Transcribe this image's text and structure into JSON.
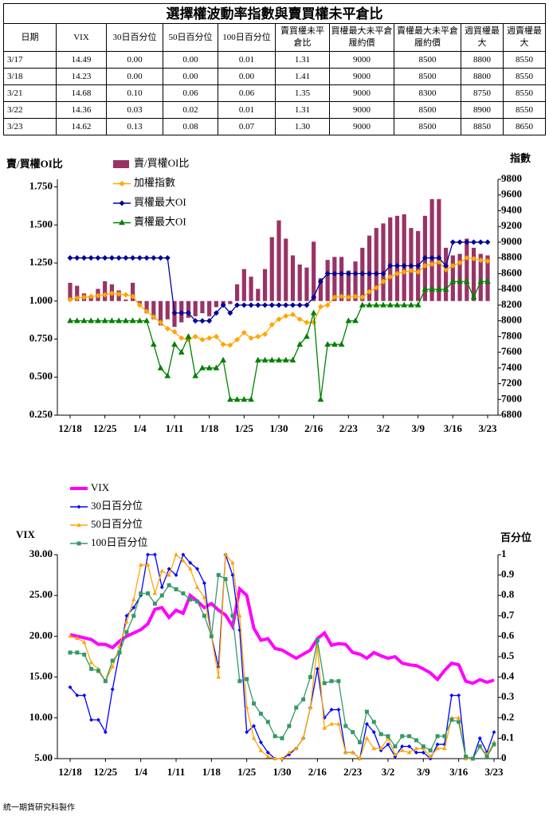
{
  "title": "選擇權波動率指數與賣買權未平倉比",
  "table": {
    "header": [
      "日期",
      "VIX",
      "30日百分位",
      "50日百分位",
      "100日百分位",
      "賣買權未平倉比",
      "買權最大未平倉履約價",
      "賣權最大未平倉履約價",
      "週買權最大",
      "週賣權最大"
    ],
    "rows": [
      [
        "3/17",
        "14.49",
        "0.00",
        "0.00",
        "0.01",
        "1.31",
        "9000",
        "8500",
        "8800",
        "8550"
      ],
      [
        "3/18",
        "14.23",
        "0.00",
        "0.00",
        "0.00",
        "1.41",
        "9000",
        "8500",
        "8800",
        "8550"
      ],
      [
        "3/21",
        "14.68",
        "0.10",
        "0.06",
        "0.06",
        "1.35",
        "9000",
        "8300",
        "8750",
        "8550"
      ],
      [
        "3/22",
        "14.36",
        "0.03",
        "0.02",
        "0.01",
        "1.31",
        "9000",
        "8500",
        "8900",
        "8550"
      ],
      [
        "3/23",
        "14.62",
        "0.13",
        "0.08",
        "0.07",
        "1.30",
        "9000",
        "8500",
        "8850",
        "8650"
      ]
    ]
  },
  "chart_data": [
    {
      "type": "combo",
      "y_label": "賣/買權OI比",
      "y2_label": "指數",
      "legend": "top",
      "bar_base": 1,
      "categories": [
        "12/18",
        null,
        null,
        null,
        null,
        "12/25",
        null,
        null,
        null,
        null,
        "1/4",
        null,
        null,
        null,
        null,
        "1/11",
        null,
        null,
        null,
        null,
        "1/18",
        null,
        null,
        null,
        null,
        "1/25",
        null,
        null,
        null,
        null,
        "1/30",
        null,
        null,
        null,
        null,
        "2/16",
        null,
        null,
        null,
        null,
        "2/23",
        null,
        null,
        null,
        null,
        "3/2",
        null,
        null,
        null,
        null,
        "3/9",
        null,
        null,
        null,
        null,
        "3/16",
        null,
        null,
        null,
        null,
        "3/23"
      ],
      "ylim": [
        0.25,
        1.8
      ],
      "yticks": [
        {
          "value": 0.25,
          "label": "0.250"
        },
        {
          "value": 0.5,
          "label": "0.500"
        },
        {
          "value": 0.75,
          "label": "0.750"
        },
        {
          "value": 1,
          "label": "1.000"
        },
        {
          "value": 1.25,
          "label": "1.250"
        },
        {
          "value": 1.5,
          "label": "1.500"
        },
        {
          "value": 1.75,
          "label": "1.750"
        }
      ],
      "y2lim": [
        6800,
        9800
      ],
      "y2ticks": [
        6800,
        7000,
        7200,
        7400,
        7600,
        7800,
        8000,
        8200,
        8400,
        8600,
        8800,
        9000,
        9200,
        9400,
        9600,
        9800
      ],
      "series": [
        {
          "name": "賣/買權OI比",
          "type": "bar",
          "color": "#993366",
          "axis": "y",
          "values": [
            1.12,
            1.1,
            1.05,
            1.03,
            1.08,
            1.13,
            1.11,
            1.07,
            1.01,
            1.12,
            0.98,
            0.92,
            0.88,
            0.84,
            0.88,
            0.83,
            0.86,
            0.89,
            0.9,
            0.92,
            0.9,
            0.96,
            0.97,
            0.98,
            1.11,
            1.21,
            1.16,
            1.08,
            1.21,
            1.42,
            1.53,
            1.41,
            1.3,
            1.24,
            1.22,
            1.39,
            1.15,
            1.27,
            1.29,
            1.29,
            1.2,
            1.26,
            1.35,
            1.43,
            1.48,
            1.51,
            1.55,
            1.56,
            1.57,
            1.48,
            1.46,
            1.56,
            1.67,
            1.67,
            1.35,
            1.3,
            1.31,
            1.41,
            1.35,
            1.31,
            1.3
          ]
        },
        {
          "name": "加權指數",
          "type": "line",
          "marker": "diamond",
          "color": "#ffa500",
          "axis": "y2",
          "values": [
            8270,
            8290,
            8300,
            8310,
            8320,
            8330,
            8350,
            8340,
            8330,
            8310,
            8200,
            8120,
            8050,
            7980,
            7900,
            7860,
            7780,
            7760,
            7800,
            7760,
            7780,
            7800,
            7700,
            7690,
            7760,
            7850,
            7780,
            7800,
            7830,
            7950,
            8020,
            8060,
            8080,
            8020,
            7980,
            7980,
            8180,
            8200,
            8300,
            8310,
            8300,
            8310,
            8300,
            8370,
            8420,
            8500,
            8560,
            8600,
            8620,
            8640,
            8620,
            8700,
            8720,
            8750,
            8650,
            8700,
            8740,
            8800,
            8790,
            8770,
            8760
          ]
        },
        {
          "name": "買權最大OI",
          "type": "line",
          "marker": "diamond",
          "color": "#000099",
          "axis": "y2",
          "values": [
            8800,
            8800,
            8800,
            8800,
            8800,
            8800,
            8800,
            8800,
            8800,
            8800,
            8800,
            8800,
            8800,
            8800,
            8800,
            8100,
            8100,
            8100,
            8000,
            8000,
            8000,
            8100,
            8200,
            8100,
            8200,
            8200,
            8200,
            8200,
            8200,
            8200,
            8200,
            8200,
            8200,
            8200,
            8200,
            8300,
            8500,
            8600,
            8600,
            8600,
            8600,
            8600,
            8600,
            8600,
            8600,
            8600,
            8700,
            8700,
            8700,
            8700,
            8700,
            8800,
            8800,
            8800,
            8700,
            9000,
            9000,
            9000,
            9000,
            9000,
            9000
          ]
        },
        {
          "name": "賣權最大OI",
          "type": "line",
          "marker": "triangle",
          "color": "#008000",
          "axis": "y2",
          "values": [
            8000,
            8000,
            8000,
            8000,
            8000,
            8000,
            8000,
            8000,
            8000,
            8000,
            8000,
            8000,
            7700,
            7400,
            7300,
            7700,
            7600,
            7800,
            7300,
            7400,
            7400,
            7400,
            7500,
            7000,
            7000,
            7000,
            7000,
            7500,
            7500,
            7500,
            7500,
            7500,
            7500,
            7700,
            7800,
            8100,
            7000,
            7700,
            7700,
            7700,
            8000,
            8000,
            8200,
            8200,
            8200,
            8200,
            8200,
            8200,
            8200,
            8200,
            8200,
            8400,
            8400,
            8400,
            8400,
            8500,
            8500,
            8500,
            8300,
            8500,
            8500
          ]
        }
      ]
    },
    {
      "type": "combo",
      "y_label": "VIX",
      "y2_label": "百分位",
      "legend": "top",
      "categories": [
        "12/18",
        null,
        null,
        null,
        null,
        "12/25",
        null,
        null,
        null,
        null,
        "1/4",
        null,
        null,
        null,
        null,
        "1/11",
        null,
        null,
        null,
        null,
        "1/18",
        null,
        null,
        null,
        null,
        "1/25",
        null,
        null,
        null,
        null,
        "1/30",
        null,
        null,
        null,
        null,
        "2/16",
        null,
        null,
        null,
        null,
        "2/23",
        null,
        null,
        null,
        null,
        "3/2",
        null,
        null,
        null,
        null,
        "3/9",
        null,
        null,
        null,
        null,
        "3/16",
        null,
        null,
        null,
        null,
        "3/23"
      ],
      "ylim": [
        5,
        30
      ],
      "yticks": [
        {
          "value": 5,
          "label": "5.00"
        },
        {
          "value": 10,
          "label": "10.00"
        },
        {
          "value": 15,
          "label": "15.00"
        },
        {
          "value": 20,
          "label": "20.00"
        },
        {
          "value": 25,
          "label": "25.00"
        },
        {
          "value": 30,
          "label": "30.00"
        }
      ],
      "y2lim": [
        0,
        1
      ],
      "y2ticks": [
        0,
        0.1,
        0.2,
        0.3,
        0.4,
        0.5,
        0.6,
        0.7,
        0.8,
        0.9,
        1
      ],
      "series": [
        {
          "name": "VIX",
          "type": "line",
          "marker": "none",
          "color": "#ff00ff",
          "axis": "y",
          "values": [
            20.2,
            20.0,
            19.8,
            19.6,
            19.0,
            19.0,
            18.6,
            19.4,
            20.0,
            20.4,
            20.8,
            21.5,
            23.3,
            23.5,
            22.3,
            23.2,
            22.8,
            25.0,
            24.3,
            23.5,
            24.0,
            23.2,
            22.6,
            21.2,
            25.8,
            25.0,
            21.0,
            19.5,
            19.7,
            18.5,
            18.3,
            17.8,
            17.3,
            17.8,
            18.3,
            19.7,
            20.4,
            18.9,
            19.1,
            19.0,
            18.0,
            17.8,
            17.3,
            18.0,
            17.6,
            17.3,
            17.5,
            16.7,
            16.5,
            16.4,
            16.0,
            15.5,
            14.7,
            15.8,
            16.7,
            16.5,
            14.49,
            14.23,
            14.68,
            14.36,
            14.62
          ]
        },
        {
          "name": "30日百分位",
          "type": "line",
          "marker": "diamond",
          "color": "#0000ff",
          "axis": "y2",
          "values": [
            0.35,
            0.31,
            0.31,
            0.19,
            0.19,
            0.13,
            0.34,
            0.52,
            0.7,
            0.74,
            0.8,
            1.0,
            1.0,
            0.84,
            0.93,
            0.9,
            1.0,
            0.96,
            0.93,
            0.86,
            0.6,
            0.45,
            1.0,
            0.9,
            0.63,
            0.13,
            0.16,
            0.08,
            0.03,
            0.0,
            0.0,
            0.02,
            0.05,
            0.1,
            0.25,
            0.44,
            0.2,
            0.24,
            0.24,
            0.03,
            0.03,
            0.0,
            0.17,
            0.13,
            0.04,
            0.07,
            0.01,
            0.06,
            0.06,
            0.03,
            0.03,
            0.0,
            0.07,
            0.07,
            0.31,
            0.31,
            0.0,
            0.0,
            0.1,
            0.03,
            0.13
          ]
        },
        {
          "name": "50日百分位",
          "type": "line",
          "marker": "triangle",
          "color": "#ffa500",
          "axis": "y2",
          "values": [
            0.6,
            0.59,
            0.57,
            0.47,
            0.44,
            0.38,
            0.45,
            0.55,
            0.67,
            0.78,
            0.95,
            0.95,
            0.81,
            0.92,
            0.9,
            1.0,
            0.97,
            0.93,
            0.84,
            0.79,
            0.6,
            0.4,
            1.0,
            0.96,
            0.7,
            0.25,
            0.1,
            0.04,
            0.01,
            0.0,
            0.0,
            0.03,
            0.05,
            0.1,
            0.25,
            0.55,
            0.15,
            0.17,
            0.17,
            0.03,
            0.03,
            0.0,
            0.1,
            0.05,
            0.05,
            0.1,
            0.02,
            0.04,
            0.03,
            0.05,
            0.05,
            0.01,
            0.05,
            0.05,
            0.2,
            0.2,
            0.0,
            0.0,
            0.06,
            0.02,
            0.08
          ]
        },
        {
          "name": "100日百分位",
          "type": "line",
          "marker": "square",
          "color": "#339966",
          "axis": "y2",
          "values": [
            0.52,
            0.52,
            0.51,
            0.44,
            0.43,
            0.38,
            0.48,
            0.52,
            0.62,
            0.7,
            0.81,
            0.81,
            0.76,
            0.8,
            0.85,
            0.83,
            0.81,
            0.78,
            0.77,
            0.7,
            0.6,
            0.9,
            0.88,
            0.7,
            0.38,
            0.39,
            0.27,
            0.22,
            0.18,
            0.11,
            0.1,
            0.16,
            0.25,
            0.29,
            0.4,
            0.58,
            0.37,
            0.38,
            0.38,
            0.16,
            0.13,
            0.08,
            0.23,
            0.18,
            0.12,
            0.11,
            0.06,
            0.11,
            0.11,
            0.09,
            0.06,
            0.04,
            0.11,
            0.11,
            0.19,
            0.18,
            0.01,
            0.0,
            0.06,
            0.01,
            0.07
          ]
        }
      ]
    }
  ],
  "footer": "統一期貨研究科製作"
}
